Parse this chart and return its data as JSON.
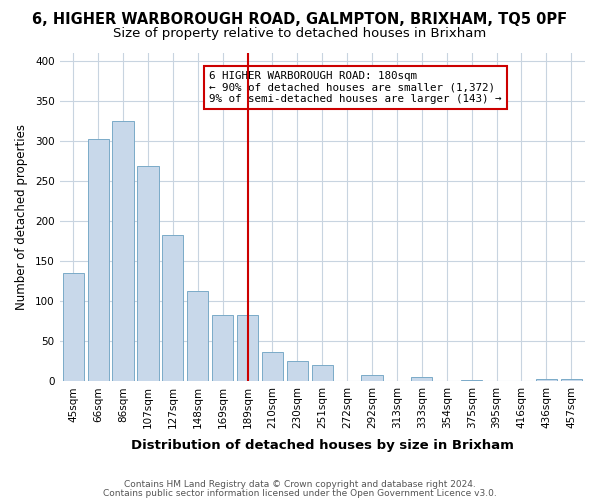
{
  "title": "6, HIGHER WARBOROUGH ROAD, GALMPTON, BRIXHAM, TQ5 0PF",
  "subtitle": "Size of property relative to detached houses in Brixham",
  "xlabel": "Distribution of detached houses by size in Brixham",
  "ylabel": "Number of detached properties",
  "categories": [
    "45sqm",
    "66sqm",
    "86sqm",
    "107sqm",
    "127sqm",
    "148sqm",
    "169sqm",
    "189sqm",
    "210sqm",
    "230sqm",
    "251sqm",
    "272sqm",
    "292sqm",
    "313sqm",
    "333sqm",
    "354sqm",
    "375sqm",
    "395sqm",
    "416sqm",
    "436sqm",
    "457sqm"
  ],
  "values": [
    135,
    302,
    325,
    268,
    183,
    113,
    83,
    83,
    37,
    25,
    20,
    0,
    8,
    0,
    5,
    0,
    2,
    0,
    0,
    3,
    3
  ],
  "bar_color": "#c8d8ea",
  "bar_edge_color": "#7aaac8",
  "vline_x": 7,
  "vline_color": "#cc0000",
  "annotation_text": "6 HIGHER WARBOROUGH ROAD: 180sqm\n← 90% of detached houses are smaller (1,372)\n9% of semi-detached houses are larger (143) →",
  "annotation_box_color": "#ffffff",
  "annotation_box_edge": "#cc0000",
  "ylim": [
    0,
    410
  ],
  "yticks": [
    0,
    50,
    100,
    150,
    200,
    250,
    300,
    350,
    400
  ],
  "footer1": "Contains HM Land Registry data © Crown copyright and database right 2024.",
  "footer2": "Contains public sector information licensed under the Open Government Licence v3.0.",
  "bg_color": "#ffffff",
  "grid_color": "#c8d4e0",
  "title_fontsize": 10.5,
  "subtitle_fontsize": 9.5,
  "tick_fontsize": 7.5,
  "ylabel_fontsize": 8.5,
  "xlabel_fontsize": 9.5,
  "footer_fontsize": 6.5
}
